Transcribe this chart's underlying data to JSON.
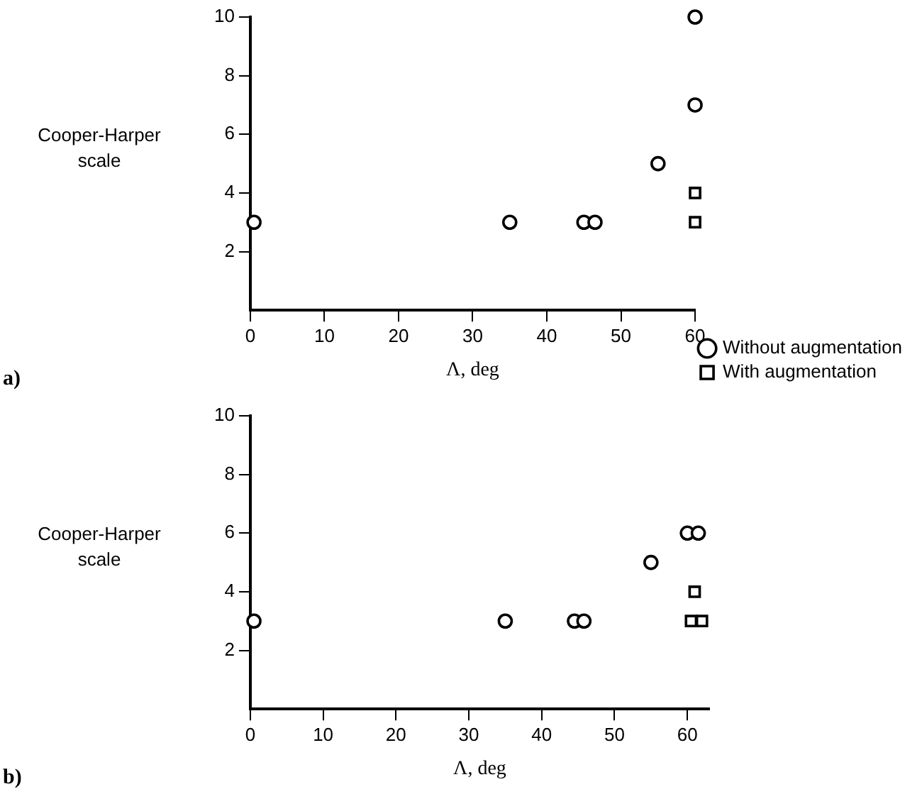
{
  "chart_data": [
    {
      "type": "scatter",
      "xlabel": "Λ, deg",
      "ylabel": "Cooper-Harper scale",
      "annotations": [
        "a)"
      ],
      "xlim": [
        0,
        60
      ],
      "ylim": [
        0,
        10
      ],
      "xticks": [
        0,
        10,
        20,
        30,
        40,
        50,
        60
      ],
      "yticks": [
        2,
        4,
        6,
        8,
        10
      ],
      "grid": false,
      "legend": "bottom right",
      "series": [
        {
          "name": "Without augmentation",
          "color": "#000000",
          "marker": "circle",
          "x": [
            0.5,
            35,
            45,
            46.5,
            55,
            60,
            60
          ],
          "values": [
            3,
            3,
            3,
            3,
            5,
            7,
            10
          ]
        },
        {
          "name": "With augmentation",
          "color": "#000000",
          "marker": "square",
          "x": [
            60,
            60
          ],
          "values": [
            4,
            3
          ]
        }
      ]
    },
    {
      "type": "scatter",
      "xlabel": "Λ, deg",
      "ylabel": "Cooper-Harper scale",
      "annotations": [
        "b)"
      ],
      "xlim": [
        0,
        63
      ],
      "ylim": [
        0,
        10
      ],
      "xticks": [
        0,
        10,
        20,
        30,
        40,
        50,
        60
      ],
      "yticks": [
        2,
        4,
        6,
        8,
        10
      ],
      "grid": false,
      "series": [
        {
          "color": "#000000",
          "marker": "circle",
          "x": [
            0.5,
            35,
            44.5,
            45.8,
            55,
            60,
            61.5
          ],
          "values": [
            3,
            3,
            3,
            3,
            5,
            6,
            6
          ]
        },
        {
          "color": "#000000",
          "marker": "square",
          "x": [
            61,
            60.5,
            62
          ],
          "values": [
            4,
            3,
            3
          ]
        }
      ]
    }
  ]
}
